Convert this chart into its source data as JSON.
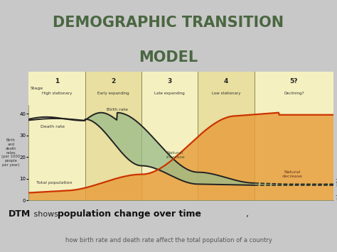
{
  "title_line1": "DEMOGRAPHIC TRANSITION",
  "title_line2": "MODEL",
  "title_fontsize": 15,
  "title_color": "#4a6741",
  "bg_color": "#c8c8c8",
  "chart_bg_odd": "#f5f0c0",
  "chart_bg_even": "#e8dfa0",
  "header_bg": "#f0ebb8",
  "border_color": "#aaaaaa",
  "stage_boundaries": [
    0.0,
    0.185,
    0.37,
    0.555,
    0.74,
    1.0
  ],
  "stage_numbers": [
    "1",
    "2",
    "3",
    "4",
    "5?"
  ],
  "stage_subtitles": [
    "High stationary",
    "Early expanding",
    "Late expanding",
    "Low stationary",
    "Declining?"
  ],
  "ylabel_lines": [
    "Birth",
    "and",
    "death",
    "rates",
    "(per 1000",
    "people",
    "per year)"
  ],
  "yticks": [
    0,
    10,
    20,
    30,
    40
  ],
  "ymax": 44,
  "death_rate_color": "#222222",
  "birth_rate_color": "#222222",
  "total_pop_color": "#cc3300",
  "natural_increase_fill": "#99bb88",
  "natural_increase_alpha": 0.75,
  "stage_line_color": "#888855",
  "bottom_text2": "how birth rate and death rate affect the total population of a country"
}
